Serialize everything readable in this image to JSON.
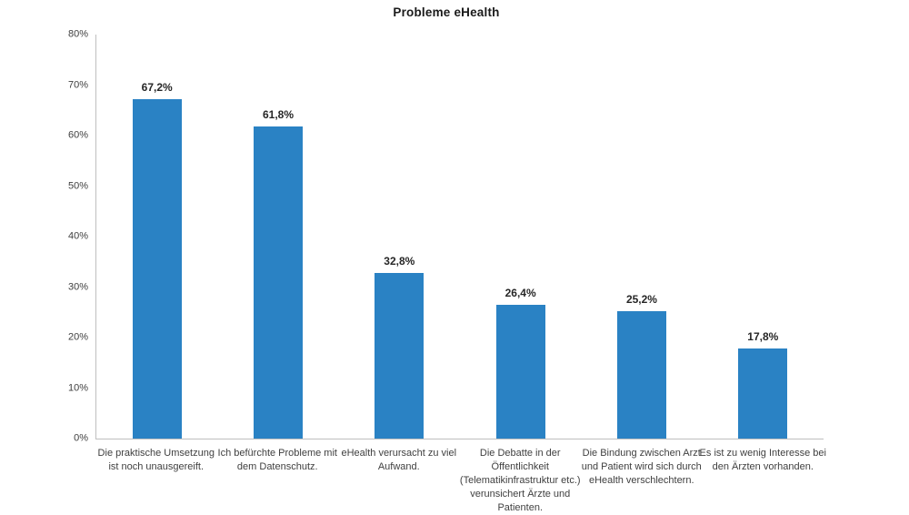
{
  "chart_data": {
    "type": "bar",
    "title": "Probleme eHealth",
    "categories": [
      "Die praktische Umsetzung\nist noch unausgereift.",
      "Ich befürchte Probleme mit\ndem Datenschutz.",
      "eHealth verursacht zu viel\nAufwand.",
      "Die Debatte in der\nÖffentlichkeit\n(Telematikinfrastruktur etc.)\nverunsichert Ärzte und\nPatienten.",
      "Die Bindung zwischen Arzt\nund Patient wird sich durch\neHealth verschlechtern.",
      "Es ist zu wenig Interesse bei\nden Ärzten vorhanden."
    ],
    "values": [
      67.2,
      61.8,
      32.8,
      26.4,
      25.2,
      17.8
    ],
    "value_labels": [
      "67,2%",
      "61,8%",
      "32,8%",
      "26,4%",
      "25,2%",
      "17,8%"
    ],
    "xlabel": "",
    "ylabel": "",
    "ylim": [
      0,
      80
    ],
    "yticks": [
      {
        "value": 0,
        "label": "0%"
      },
      {
        "value": 10,
        "label": "10%"
      },
      {
        "value": 20,
        "label": "20%"
      },
      {
        "value": 30,
        "label": "30%"
      },
      {
        "value": 40,
        "label": "40%"
      },
      {
        "value": 50,
        "label": "50%"
      },
      {
        "value": 60,
        "label": "60%"
      },
      {
        "value": 70,
        "label": "70%"
      },
      {
        "value": 80,
        "label": "80%"
      }
    ],
    "grid": false,
    "legend": false,
    "colors": {
      "bar": "#2a82c4",
      "axis_line": "#bfbfbf",
      "tick_label": "#404040",
      "value_label": "#262626",
      "title": "#1a1a1a",
      "background": "#ffffff"
    }
  }
}
